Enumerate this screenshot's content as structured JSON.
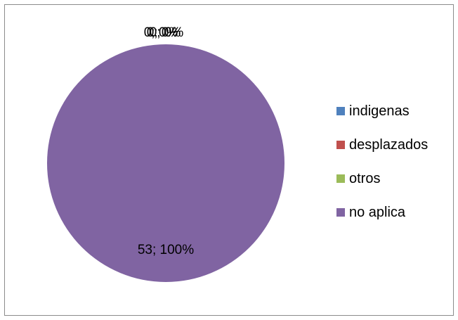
{
  "chart_data": {
    "type": "pie",
    "categories": [
      "indigenas",
      "desplazados",
      "otros",
      "no aplica"
    ],
    "values": [
      0,
      0,
      0,
      53
    ],
    "percentages": [
      "0%",
      "0%",
      "0%",
      "100%"
    ],
    "data_labels": [
      "0; 0%",
      "0; 0%",
      "0; 0%",
      "53; 100%"
    ],
    "colors": [
      "#4f81bd",
      "#c0504d",
      "#9bbb59",
      "#8064a2"
    ],
    "legend_position": "right",
    "title": ""
  }
}
